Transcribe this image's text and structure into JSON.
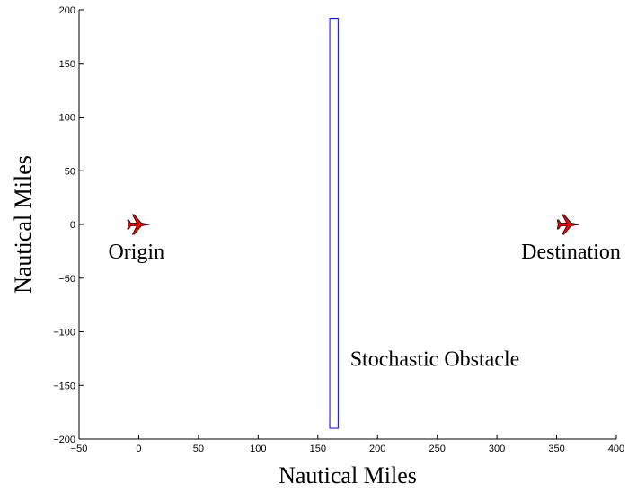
{
  "chart_data": {
    "type": "scatter",
    "title": "",
    "xlabel": "Nautical Miles",
    "ylabel": "Nautical Miles",
    "xlim": [
      -50,
      400
    ],
    "ylim": [
      -200,
      200
    ],
    "xticks": [
      -50,
      0,
      50,
      100,
      150,
      200,
      250,
      300,
      350,
      400
    ],
    "yticks": [
      -200,
      -150,
      -100,
      -50,
      0,
      50,
      100,
      150,
      200
    ],
    "grid": false,
    "obstacle": {
      "x": [
        160,
        167
      ],
      "y": [
        -190,
        192
      ],
      "color": "#0000ff"
    },
    "points": [
      {
        "name": "origin",
        "x": 0,
        "y": 0
      },
      {
        "name": "destination",
        "x": 360,
        "y": 0
      }
    ],
    "annotations": [
      {
        "text": "Origin",
        "x": -2,
        "y": -32
      },
      {
        "text": "Destination",
        "x": 362,
        "y": -32
      },
      {
        "text": "Stochastic Obstacle",
        "x": 248,
        "y": -132
      }
    ],
    "marker_color": "#ff0000"
  }
}
